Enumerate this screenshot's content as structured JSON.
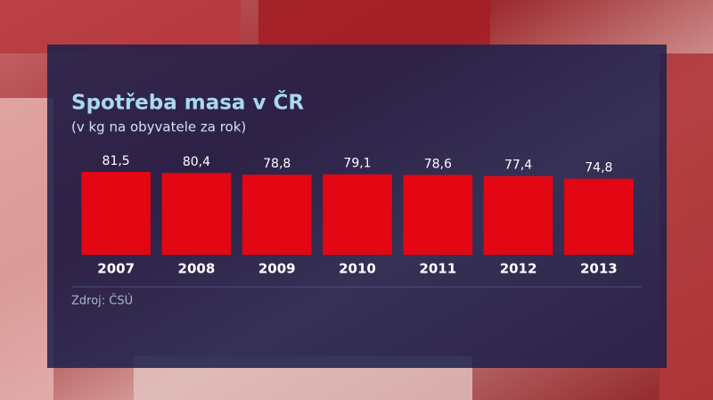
{
  "chart_data": {
    "type": "bar",
    "title": "Spotřeba masa v ČR",
    "subtitle": "(v kg na obyvatele za rok)",
    "categories": [
      "2007",
      "2008",
      "2009",
      "2010",
      "2011",
      "2012",
      "2013"
    ],
    "values": [
      81.5,
      80.4,
      78.8,
      79.1,
      78.6,
      77.4,
      74.8
    ],
    "value_labels": [
      "81,5",
      "80,4",
      "78,8",
      "79,1",
      "78,6",
      "77,4",
      "74,8"
    ],
    "color": "#e30613",
    "ylim": [
      0,
      85
    ],
    "source": "Zdroj: ČSÚ"
  }
}
